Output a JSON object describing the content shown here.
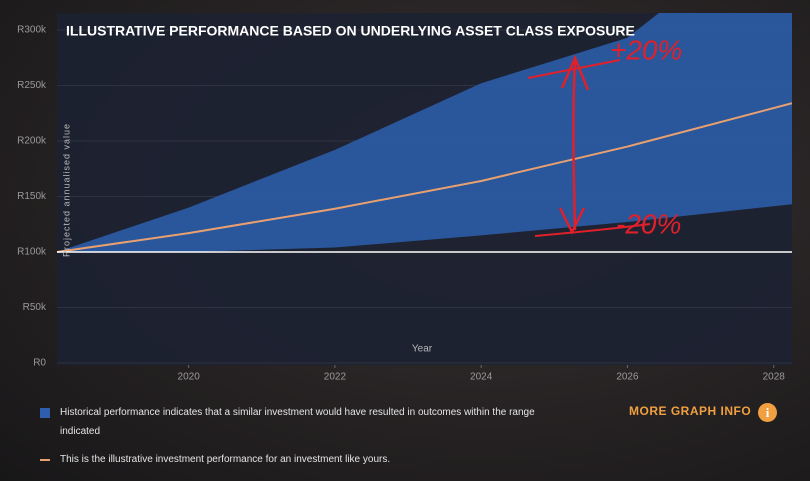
{
  "chart_data": {
    "type": "line",
    "title": "ILLUSTRATIVE PERFORMANCE BASED ON UNDERLYING ASSET CLASS EXPOSURE",
    "y_label": "Projected annualised value",
    "x_label": "Year",
    "annotations": [
      "+20%",
      "-20%"
    ],
    "x": [
      2018.2,
      2020,
      2022,
      2024,
      2026,
      2028.25
    ],
    "series": [
      {
        "name": "Historical performance indicates that a similar investment would have resulted in outcomes within the range indicated",
        "color": "#2d5fae",
        "kind": "band",
        "upper": [
          100000,
          140000,
          192000,
          252000,
          293000,
          410000
        ],
        "lower": [
          100000,
          100000,
          104000,
          115000,
          127000,
          143000
        ]
      },
      {
        "name": "This is the illustrative investment performance for an investment like yours.",
        "color": "#e8a070",
        "kind": "line",
        "values": [
          100000,
          117000,
          139000,
          164000,
          195000,
          234000
        ]
      }
    ],
    "reference_line": 100000,
    "xlim": [
      2018.2,
      2028.25
    ],
    "xticks": [
      2020,
      2022,
      2024,
      2026,
      2028
    ],
    "ylim": [
      0,
      300000
    ],
    "yticks": [
      {
        "value": 0,
        "label": "R0"
      },
      {
        "value": 50000,
        "label": "R50k"
      },
      {
        "value": 100000,
        "label": "R100k"
      },
      {
        "value": 150000,
        "label": "R150k"
      },
      {
        "value": 200000,
        "label": "R200k"
      },
      {
        "value": 250000,
        "label": "R250k"
      },
      {
        "value": 300000,
        "label": "R300k"
      }
    ],
    "grid": true
  },
  "more_info": "MORE GRAPH INFO",
  "info_icon": "i"
}
